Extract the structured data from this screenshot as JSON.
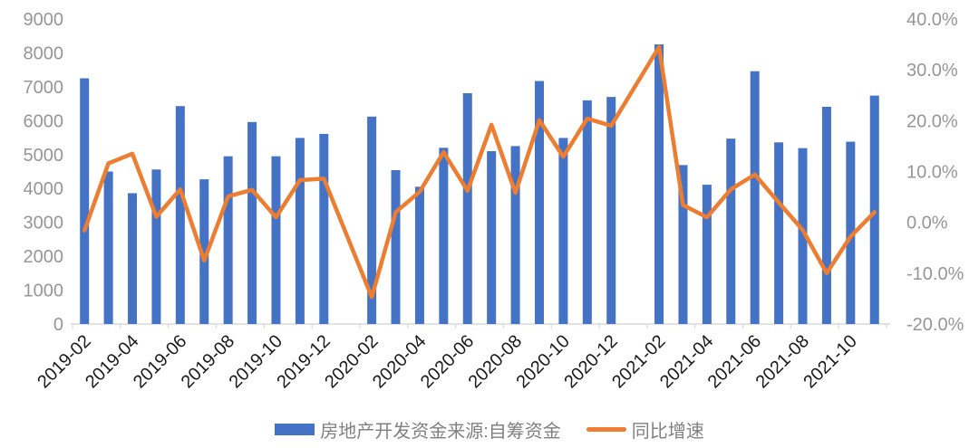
{
  "chart_data": {
    "type": "combo_bar_line",
    "title": "",
    "grid": false,
    "legend_position": "bottom",
    "categories": [
      "2019-02",
      "2019-03",
      "2019-04",
      "2019-05",
      "2019-06",
      "2019-07",
      "2019-08",
      "2019-09",
      "2019-10",
      "2019-11",
      "2019-12",
      "2020-01",
      "2020-02",
      "2020-03",
      "2020-04",
      "2020-05",
      "2020-06",
      "2020-07",
      "2020-08",
      "2020-09",
      "2020-10",
      "2020-11",
      "2020-12",
      "2021-01",
      "2021-02",
      "2021-03",
      "2021-04",
      "2021-05",
      "2021-06",
      "2021-07",
      "2021-08",
      "2021-09",
      "2021-10",
      "2021-11"
    ],
    "x_tick_labels": [
      "2019-02",
      "2019-04",
      "2019-06",
      "2019-08",
      "2019-10",
      "2019-12",
      "2020-02",
      "2020-04",
      "2020-06",
      "2020-08",
      "2020-10",
      "2020-12",
      "2021-02",
      "2021-04",
      "2021-06",
      "2021-08",
      "2021-10"
    ],
    "series": [
      {
        "name": "房地产开发资金来源:自筹资金",
        "type": "bar",
        "axis": "left",
        "color": "#4472C4",
        "values": [
          7250,
          4500,
          3860,
          4560,
          6430,
          4270,
          4950,
          5960,
          4950,
          5490,
          5610,
          null,
          6120,
          4540,
          4050,
          5200,
          6810,
          5100,
          5250,
          7170,
          5490,
          6600,
          6700,
          null,
          8250,
          4690,
          4110,
          5470,
          7460,
          5360,
          5190,
          6410,
          5380,
          6740
        ]
      },
      {
        "name": "同比增速",
        "type": "line",
        "axis": "right",
        "color": "#ED7D31",
        "values": [
          -1.6,
          11.6,
          13.5,
          1.1,
          6.5,
          -7.5,
          5.1,
          6.4,
          1.0,
          8.3,
          8.6,
          null,
          -14.7,
          2.0,
          6.0,
          13.8,
          6.2,
          19.2,
          5.8,
          20.1,
          12.9,
          20.4,
          19.0,
          null,
          34.5,
          3.4,
          1.0,
          6.5,
          9.4,
          3.9,
          -1.5,
          -10.0,
          -2.8,
          2.0
        ]
      }
    ],
    "left_axis": {
      "min": 0,
      "max": 9000,
      "step": 1000,
      "tick_labels": [
        "0",
        "1000",
        "2000",
        "3000",
        "4000",
        "5000",
        "6000",
        "7000",
        "8000",
        "9000"
      ]
    },
    "right_axis": {
      "min": -20,
      "max": 40,
      "step": 10,
      "tick_labels": [
        "-20.0%",
        "-10.0%",
        "0.0%",
        "10.0%",
        "20.0%",
        "30.0%",
        "40.0%"
      ]
    },
    "colors": {
      "bar": "#4472C4",
      "line": "#ED7D31",
      "y_axis_label": "#969696",
      "x_axis_label": "#1A1A1A",
      "legend_text": "#808080",
      "axis_line": "#D9D9D9"
    }
  }
}
